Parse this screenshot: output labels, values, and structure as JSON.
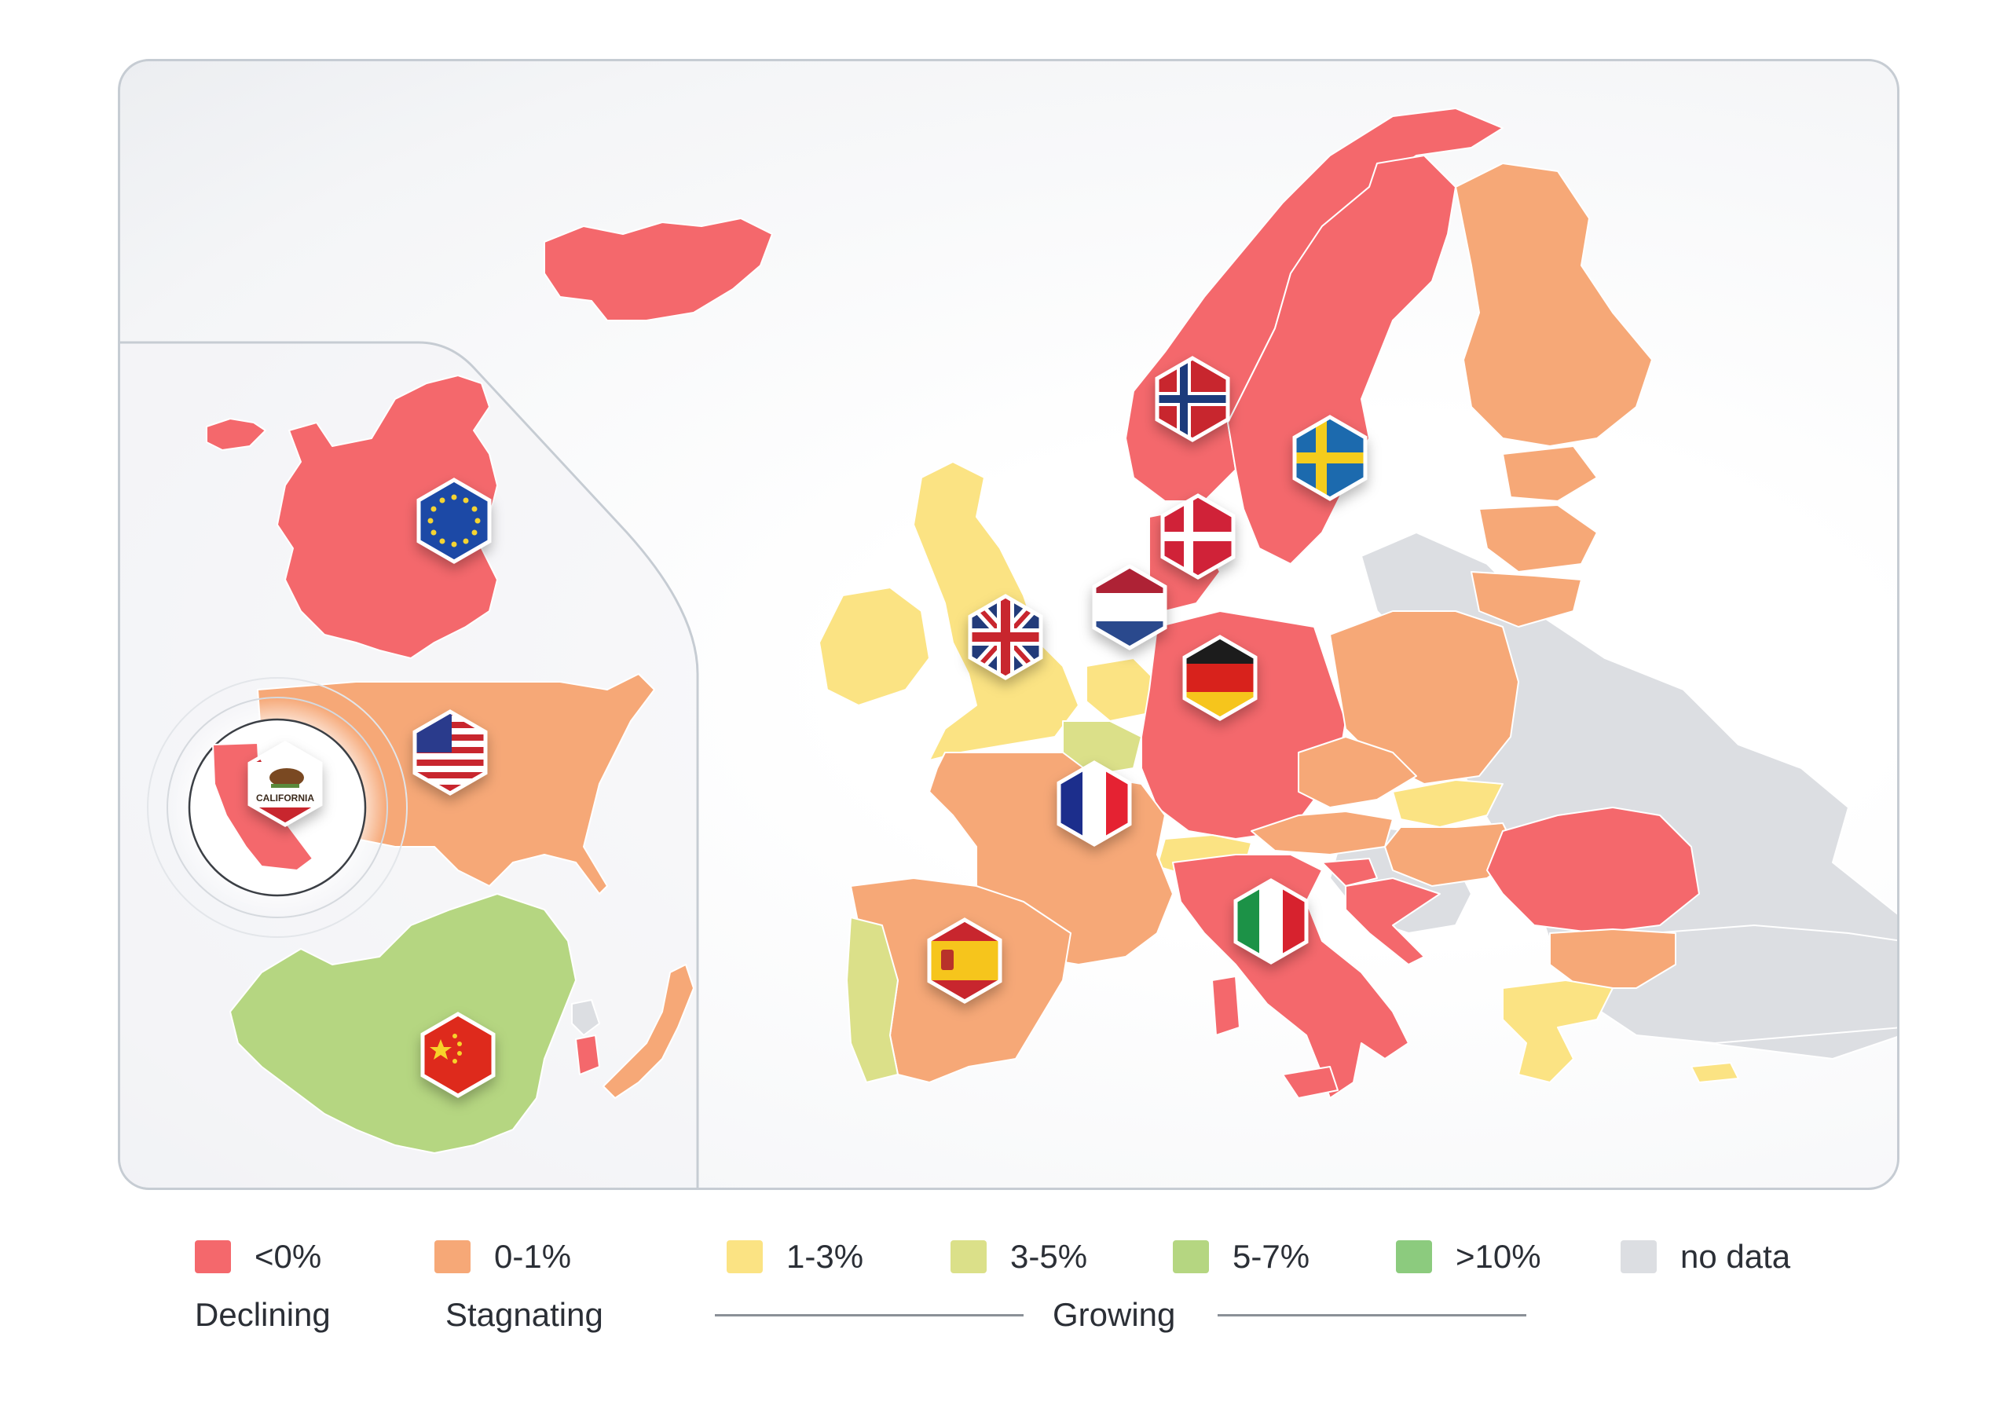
{
  "colors": {
    "declining": "#f4686c",
    "stagnating": "#f6a877",
    "growing_1_3": "#fbe383",
    "growing_3_5": "#dbe089",
    "growing_5_7": "#b5d681",
    "growing_10_plus": "#8ccb7e",
    "no_data": "#dcdee2",
    "panel_border": "#c6ccd3"
  },
  "map": {
    "inset_regions": [
      {
        "name": "European Union",
        "category": "declining",
        "flag_icon": "eu-flag-icon"
      },
      {
        "name": "United States",
        "category": "stagnating",
        "flag_icon": "us-flag-icon"
      },
      {
        "name": "California",
        "category": "declining",
        "flag_icon": "california-flag-icon",
        "highlighted": true
      },
      {
        "name": "China",
        "category": "growing_5_7",
        "flag_icon": "china-flag-icon"
      },
      {
        "name": "South Korea",
        "category": "declining"
      },
      {
        "name": "Japan",
        "category": "stagnating"
      },
      {
        "name": "North Korea",
        "category": "no_data"
      }
    ],
    "europe_countries": [
      {
        "name": "Iceland",
        "category": "declining"
      },
      {
        "name": "Norway",
        "category": "declining",
        "flag_icon": "norway-flag-icon"
      },
      {
        "name": "Sweden",
        "category": "declining",
        "flag_icon": "sweden-flag-icon"
      },
      {
        "name": "Finland",
        "category": "stagnating"
      },
      {
        "name": "Denmark",
        "category": "declining",
        "flag_icon": "denmark-flag-icon"
      },
      {
        "name": "United Kingdom",
        "category": "growing_1_3",
        "flag_icon": "uk-flag-icon"
      },
      {
        "name": "Ireland",
        "category": "growing_1_3"
      },
      {
        "name": "Netherlands",
        "category": "growing_1_3",
        "flag_icon": "netherlands-flag-icon"
      },
      {
        "name": "Belgium",
        "category": "growing_3_5"
      },
      {
        "name": "Germany",
        "category": "declining",
        "flag_icon": "germany-flag-icon"
      },
      {
        "name": "France",
        "category": "stagnating",
        "flag_icon": "france-flag-icon"
      },
      {
        "name": "Spain",
        "category": "stagnating",
        "flag_icon": "spain-flag-icon"
      },
      {
        "name": "Portugal",
        "category": "growing_3_5"
      },
      {
        "name": "Italy",
        "category": "declining",
        "flag_icon": "italy-flag-icon"
      },
      {
        "name": "Switzerland",
        "category": "growing_1_3"
      },
      {
        "name": "Austria",
        "category": "stagnating"
      },
      {
        "name": "Poland",
        "category": "stagnating"
      },
      {
        "name": "Czechia",
        "category": "stagnating"
      },
      {
        "name": "Slovakia",
        "category": "growing_1_3"
      },
      {
        "name": "Hungary",
        "category": "stagnating"
      },
      {
        "name": "Slovenia",
        "category": "declining"
      },
      {
        "name": "Croatia",
        "category": "declining"
      },
      {
        "name": "Romania",
        "category": "declining"
      },
      {
        "name": "Bulgaria",
        "category": "stagnating"
      },
      {
        "name": "Greece",
        "category": "growing_1_3"
      },
      {
        "name": "Estonia",
        "category": "stagnating"
      },
      {
        "name": "Latvia",
        "category": "stagnating"
      },
      {
        "name": "Lithuania",
        "category": "stagnating"
      },
      {
        "name": "Cyprus",
        "category": "growing_1_3"
      },
      {
        "name": "Eastern Europe and Balkans (non-EU)",
        "category": "no_data"
      }
    ],
    "california_flag_text": "CALIFORNIA"
  },
  "legend": {
    "items": [
      {
        "label": "<0%",
        "color": "#f4686c"
      },
      {
        "label": "0-1%",
        "color": "#f6a877"
      },
      {
        "label": "1-3%",
        "color": "#fbe383"
      },
      {
        "label": "3-5%",
        "color": "#dbe089"
      },
      {
        "label": "5-7%",
        "color": "#b5d681"
      },
      {
        "label": ">10%",
        "color": "#8ccb7e"
      },
      {
        "label": "no data",
        "color": "#dcdee2"
      }
    ],
    "groups": {
      "declining": "Declining",
      "stagnating": "Stagnating",
      "growing": "Growing"
    }
  }
}
